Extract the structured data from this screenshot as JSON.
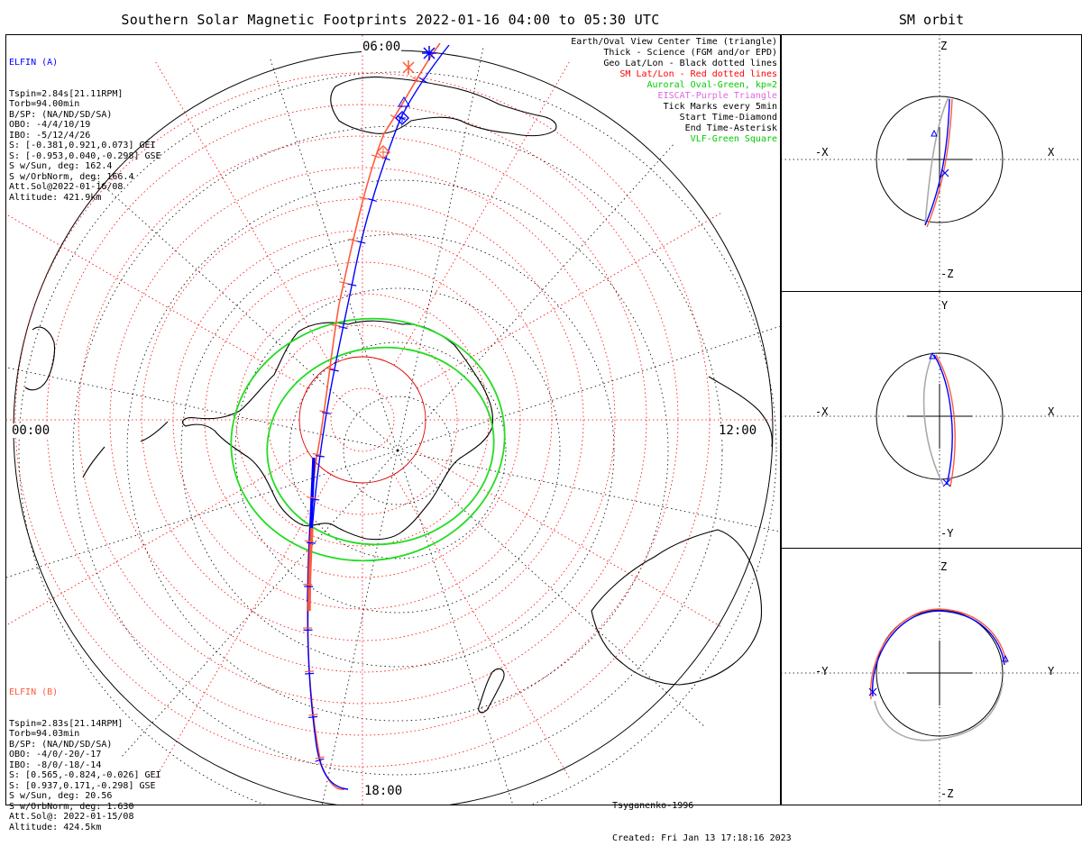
{
  "title": "Southern Solar Magnetic Footprints 2022-01-16 04:00 to 05:30 UTC",
  "orbit_title": "SM orbit",
  "mlt_labels": {
    "top": "06:00",
    "bottom": "18:00",
    "left": "00:00",
    "right": "12:00"
  },
  "probe_a": {
    "name": "ELFIN (A)",
    "color": "#0000ff",
    "lines": [
      "Tspin=2.84s[21.11RPM]",
      "Torb=94.00min",
      "B/SP: (NA/ND/SD/SA)",
      "OBO: -4/4/10/19",
      "IBO: -5/12/4/26",
      "S: [-0.381,0.921,0.073] GEI",
      "S: [-0.953,0.040,-0.298] GSE",
      "S w/Sun, deg: 162.4",
      "S w/OrbNorm, deg: 166.4",
      "Att.Sol@2022-01-16/08",
      "Altitude: 421.9km"
    ]
  },
  "probe_b": {
    "name": "ELFIN (B)",
    "color": "#ff5a3c",
    "lines": [
      "Tspin=2.83s[21.14RPM]",
      "Torb=94.03min",
      "B/SP: (NA/ND/SD/SA)",
      "OBO: -4/0/-20/-17",
      "IBO: -8/0/-18/-14",
      "S: [0.565,-0.824,-0.026] GEI",
      "S: [0.937,0.171,-0.298] GSE",
      "S w/Sun, deg: 20.56",
      "S w/OrbNorm, deg: 1.630",
      "Att.Sol@: 2022-01-15/08",
      "Altitude: 424.5km"
    ]
  },
  "legend": [
    {
      "text": "Earth/Oval View Center Time (triangle)",
      "color": "#000000"
    },
    {
      "text": "Thick - Science (FGM and/or EPD)",
      "color": "#000000"
    },
    {
      "text": "Geo Lat/Lon - Black dotted lines",
      "color": "#000000"
    },
    {
      "text": "SM Lat/Lon - Red dotted lines",
      "color": "#ff0000"
    },
    {
      "text": "Auroral Oval-Green, kp=2",
      "color": "#00cc00"
    },
    {
      "text": "EISCAT-Purple Triangle",
      "color": "#dd66dd"
    },
    {
      "text": "Tick Marks every 5min",
      "color": "#000000"
    },
    {
      "text": "Start Time-Diamond",
      "color": "#000000"
    },
    {
      "text": "End Time-Asterisk",
      "color": "#000000"
    },
    {
      "text": "VLF-Green Square",
      "color": "#00cc00"
    }
  ],
  "footer": {
    "model": "Tsyganenko-1996",
    "created": "Created: Fri Jan 13 17:18:16 2023"
  },
  "orbit_panels": [
    {
      "top": "Z",
      "bottom": "-Z",
      "left": "-X",
      "right": "X"
    },
    {
      "top": "Y",
      "bottom": "-Y",
      "left": "-X",
      "right": "X"
    },
    {
      "top": "Z",
      "bottom": "-Z",
      "left": "-Y",
      "right": "Y"
    }
  ],
  "colors": {
    "probe_a": "#0000ff",
    "probe_b": "#ff5a3c",
    "auroral_oval": "#22dd22",
    "sm_grid": "#ff0000",
    "geo_grid": "#000000",
    "gray_track": "#aaaaaa"
  }
}
